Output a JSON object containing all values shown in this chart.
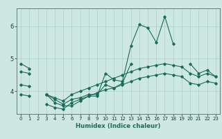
{
  "xlabel": "Humidex (Indice chaleur)",
  "xlim": [
    -0.5,
    23.5
  ],
  "ylim": [
    3.3,
    6.55
  ],
  "yticks": [
    4,
    5,
    6
  ],
  "xticks": [
    0,
    1,
    2,
    3,
    4,
    5,
    6,
    7,
    8,
    9,
    10,
    11,
    12,
    13,
    14,
    15,
    16,
    17,
    18,
    19,
    20,
    21,
    22,
    23
  ],
  "background_color": "#cce8e0",
  "grid_color": "#aacfc8",
  "line_color": "#1a6b5a",
  "x": [
    0,
    1,
    2,
    3,
    4,
    5,
    6,
    7,
    8,
    9,
    10,
    11,
    12,
    13,
    14,
    15,
    16,
    17,
    18,
    19,
    20,
    21,
    22,
    23
  ],
  "line1": [
    4.85,
    4.7,
    null,
    3.9,
    3.65,
    3.55,
    3.55,
    3.7,
    3.85,
    3.85,
    4.55,
    4.35,
    4.3,
    5.4,
    6.05,
    5.95,
    5.5,
    6.3,
    5.45,
    null,
    4.85,
    4.55,
    4.65,
    4.45
  ],
  "line2": [
    4.6,
    4.55,
    null,
    3.9,
    3.75,
    3.6,
    3.75,
    3.8,
    3.9,
    3.9,
    4.2,
    4.1,
    4.25,
    4.85,
    null,
    null,
    null,
    null,
    null,
    null,
    null,
    null,
    null,
    null
  ],
  "line3": [
    4.2,
    4.15,
    null,
    3.9,
    3.8,
    3.7,
    3.9,
    4.0,
    4.1,
    4.2,
    4.3,
    4.4,
    4.5,
    4.6,
    4.7,
    4.75,
    4.8,
    4.85,
    4.8,
    4.75,
    4.55,
    4.45,
    4.55,
    4.45
  ],
  "line4": [
    3.9,
    3.85,
    null,
    3.6,
    3.5,
    3.45,
    3.65,
    3.75,
    3.85,
    3.95,
    4.05,
    4.1,
    4.2,
    4.3,
    4.4,
    4.45,
    4.5,
    4.55,
    4.5,
    4.45,
    4.25,
    4.2,
    4.3,
    4.25
  ]
}
